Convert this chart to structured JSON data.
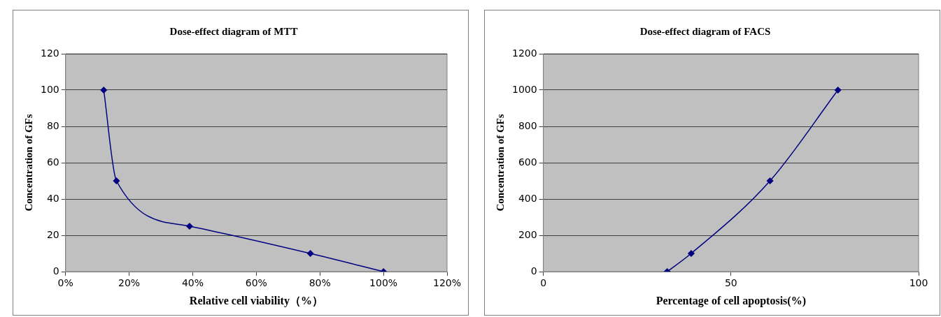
{
  "chart_data": [
    {
      "type": "line",
      "title": "Dose-effect diagram of MTT",
      "xlabel": "Relative cell viability（%）",
      "ylabel": "Concentration of GFs",
      "x": [
        12,
        16,
        39,
        77,
        100
      ],
      "values": [
        100,
        50,
        25,
        10,
        0
      ],
      "color": "#000080",
      "xlim": [
        0,
        120
      ],
      "xticks": [
        {
          "value": 0,
          "label": "0%"
        },
        {
          "value": 20,
          "label": "20%"
        },
        {
          "value": 40,
          "label": "40%"
        },
        {
          "value": 60,
          "label": "60%"
        },
        {
          "value": 80,
          "label": "80%"
        },
        {
          "value": 100,
          "label": "100%"
        },
        {
          "value": 120,
          "label": "120%"
        }
      ],
      "ylim": [
        0,
        120
      ],
      "yticks": [
        0,
        20,
        40,
        60,
        80,
        100,
        120
      ],
      "grid": "y",
      "legend": false,
      "marker": "diamond",
      "line_style": "solid"
    },
    {
      "type": "line",
      "title": "Dose-effect diagram of FACS",
      "xlabel": "Percentage of cell apoptosis(%)",
      "ylabel": "Concentration of GFs",
      "x": [
        33,
        39.4,
        60.4,
        78.5
      ],
      "values": [
        0,
        100,
        500,
        1000
      ],
      "color": "#000080",
      "xlim": [
        0,
        100
      ],
      "xticks": [
        0,
        50,
        100
      ],
      "ylim": [
        0,
        1200
      ],
      "yticks": [
        0,
        200,
        400,
        600,
        800,
        1000,
        1200
      ],
      "grid": "y",
      "legend": false,
      "marker": "diamond",
      "line_style": "solid"
    }
  ]
}
